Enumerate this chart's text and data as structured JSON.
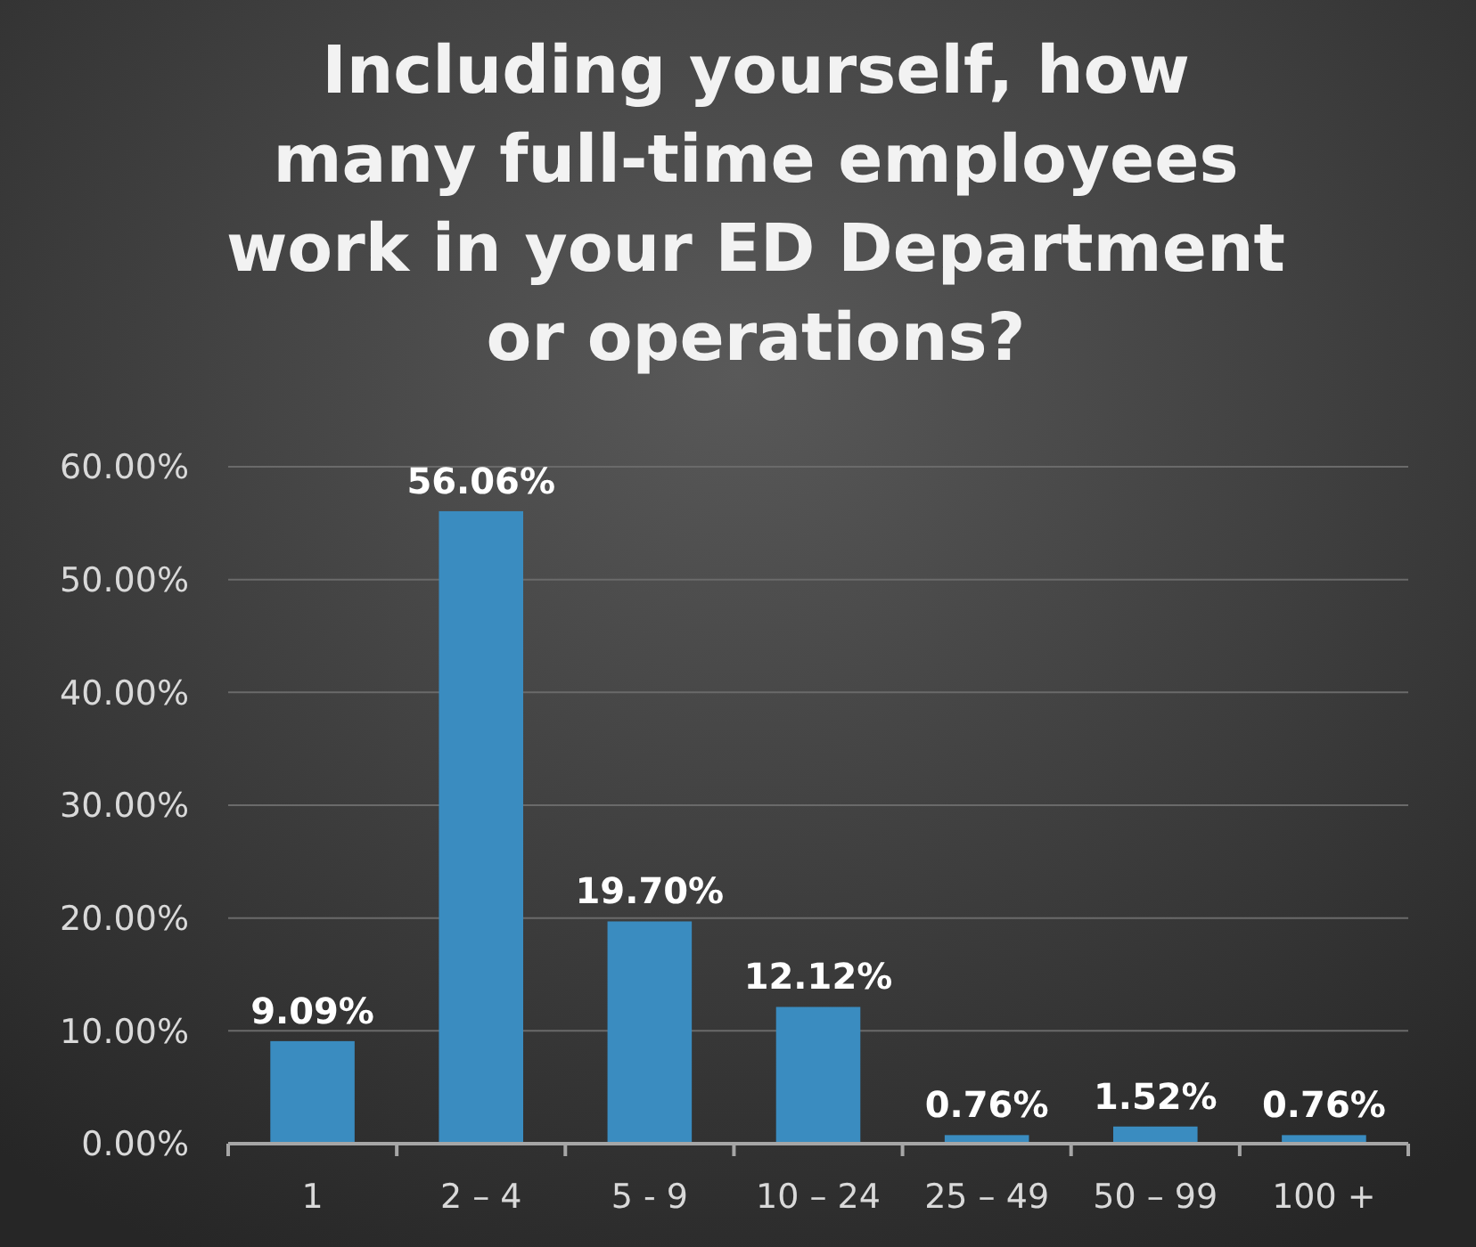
{
  "chart_data": {
    "type": "bar",
    "title": "Including yourself, how many full-time employees work in your ED Department or operations?",
    "categories": [
      "1",
      "2 – 4",
      "5 - 9",
      "10 – 24",
      "25 – 49",
      "50 – 99",
      "100 +"
    ],
    "values": [
      9.09,
      56.06,
      19.7,
      12.12,
      0.76,
      1.52,
      0.76
    ],
    "value_labels": [
      "9.09%",
      "56.06%",
      "19.70%",
      "12.12%",
      "0.76%",
      "1.52%",
      "0.76%"
    ],
    "color": "#3a8cc0",
    "ylim": [
      0,
      60
    ],
    "yticks": [
      {
        "value": 0,
        "label": "0.00%"
      },
      {
        "value": 10,
        "label": "10.00%"
      },
      {
        "value": 20,
        "label": "20.00%"
      },
      {
        "value": 30,
        "label": "30.00%"
      },
      {
        "value": 40,
        "label": "40.00%"
      },
      {
        "value": 50,
        "label": "50.00%"
      },
      {
        "value": 60,
        "label": "60.00%"
      }
    ],
    "grid": "y"
  }
}
